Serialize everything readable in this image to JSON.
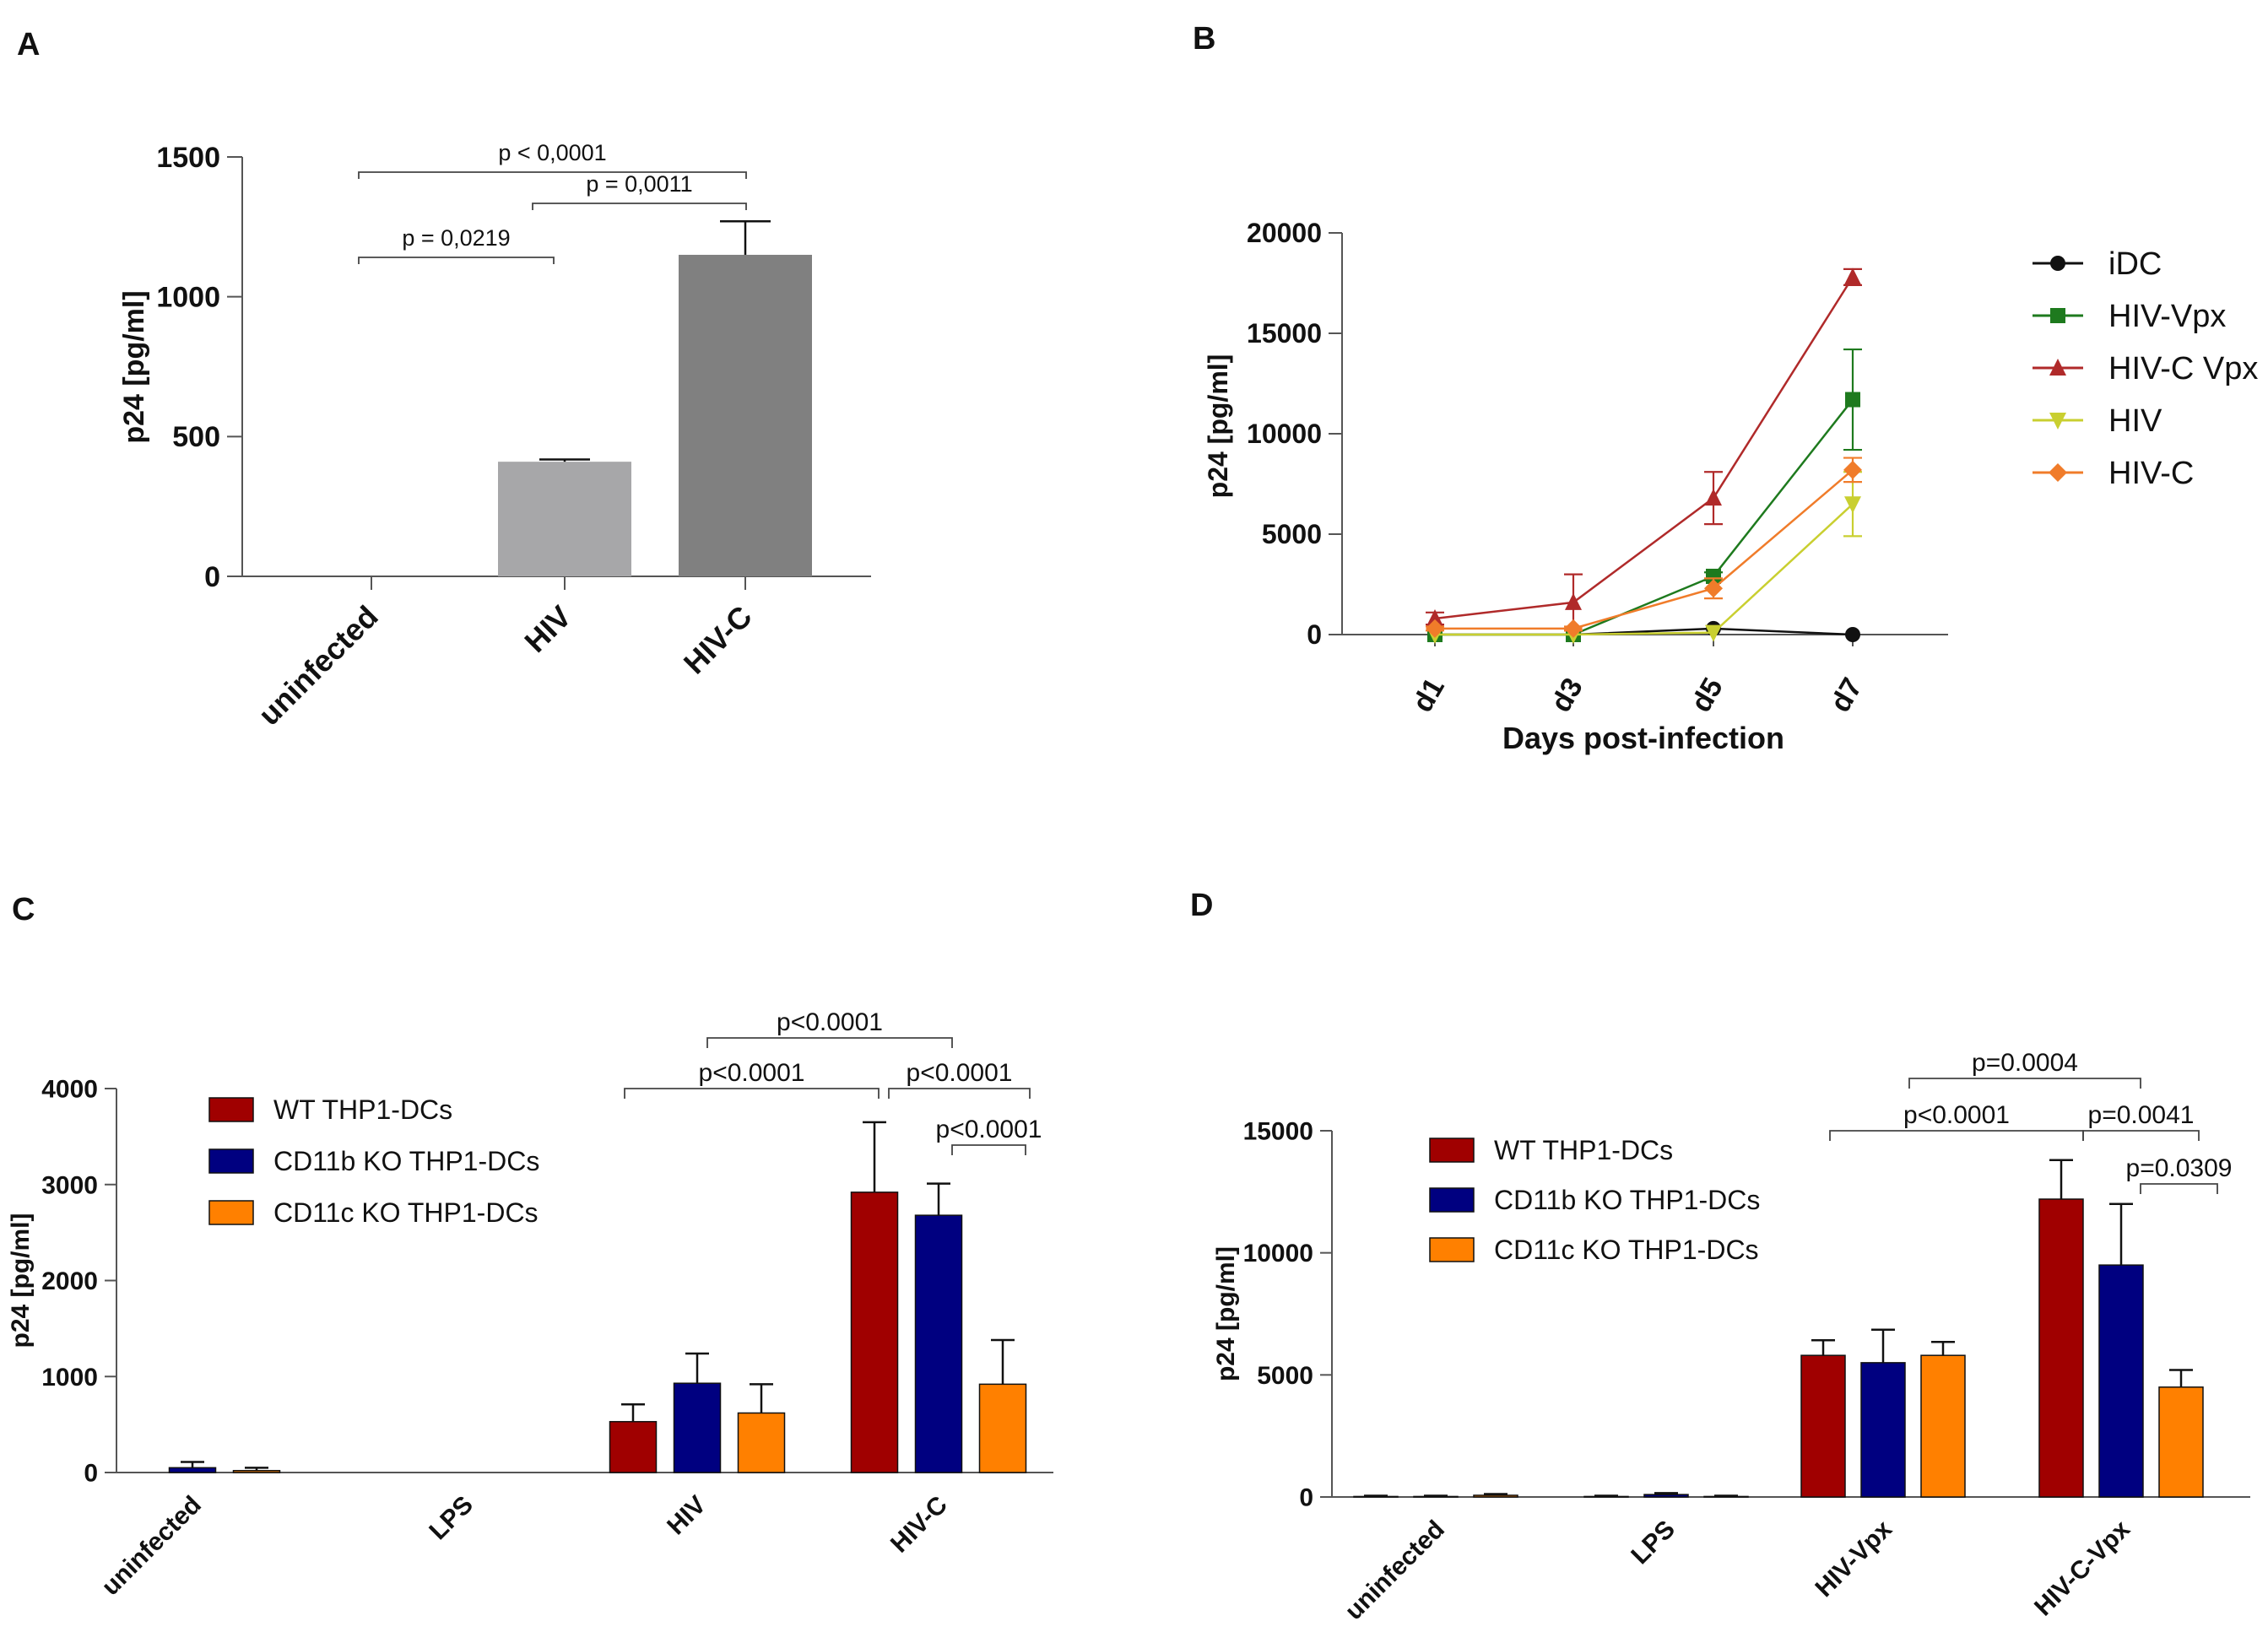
{
  "chart_data": [
    {
      "panel": "A",
      "type": "bar",
      "ylabel": "p24 [pg/ml]",
      "ylim": [
        0,
        1500
      ],
      "yticks": [
        "0",
        "500",
        "1000",
        "1500"
      ],
      "categories": [
        "uninfected",
        "HIV",
        "HIV-C"
      ],
      "series": [
        {
          "name": "p24",
          "values": [
            0,
            410,
            1150
          ],
          "errors": [
            0,
            8,
            120
          ],
          "colors": [
            "#b0b0b0",
            "#a7a7a9",
            "#808080"
          ]
        }
      ],
      "annotations": [
        {
          "text": "p < 0,0001",
          "from": 0,
          "to": 2,
          "level": 1460
        },
        {
          "text": "p = 0,0011",
          "from": 1,
          "to": 2,
          "level": 1330
        },
        {
          "text": "p = 0,0219",
          "from": 0,
          "to": 1,
          "level": 1140
        }
      ]
    },
    {
      "panel": "B",
      "type": "line",
      "xlabel": "Days post-infection",
      "ylabel": "p24 [pg/ml]",
      "ylim": [
        0,
        20000
      ],
      "yticks": [
        "0",
        "5000",
        "10000",
        "15000",
        "20000"
      ],
      "categories": [
        "d1",
        "d3",
        "d5",
        "d7"
      ],
      "series": [
        {
          "name": "iDC",
          "color": "#111111",
          "marker": "circle",
          "values": [
            0,
            0,
            300,
            0
          ],
          "errors": [
            0,
            0,
            0,
            0
          ]
        },
        {
          "name": "HIV-Vpx",
          "color": "#1e7a1e",
          "marker": "square",
          "values": [
            0,
            0,
            2900,
            11700
          ],
          "errors": [
            0,
            0,
            200,
            2500
          ]
        },
        {
          "name": "HIV-C Vpx",
          "color": "#b02a2a",
          "marker": "triangle-up",
          "values": [
            800,
            1600,
            6800,
            17800
          ],
          "errors": [
            300,
            1400,
            1300,
            400
          ]
        },
        {
          "name": "HIV",
          "color": "#c9cf30",
          "marker": "triangle-down",
          "values": [
            0,
            0,
            100,
            6500
          ],
          "errors": [
            0,
            0,
            0,
            1600
          ]
        },
        {
          "name": "HIV-C",
          "color": "#f07c2a",
          "marker": "diamond",
          "values": [
            300,
            300,
            2300,
            8200
          ],
          "errors": [
            100,
            100,
            500,
            600
          ]
        }
      ]
    },
    {
      "panel": "C",
      "type": "bar",
      "ylabel": "p24 [pg/ml]",
      "ylim": [
        0,
        4000
      ],
      "yticks": [
        "0",
        "1000",
        "2000",
        "3000",
        "4000"
      ],
      "categories": [
        "uninfected",
        "LPS",
        "HIV",
        "HIV-C"
      ],
      "series": [
        {
          "name": "WT THP1-DCs",
          "color": "#a00000",
          "values": [
            0,
            0,
            530,
            2920
          ],
          "errors": [
            0,
            0,
            180,
            730
          ]
        },
        {
          "name": "CD11b KO THP1-DCs",
          "color": "#000080",
          "values": [
            50,
            0,
            930,
            2680
          ],
          "errors": [
            60,
            0,
            310,
            330
          ]
        },
        {
          "name": "CD11c KO THP1-DCs",
          "color": "#ff8000",
          "values": [
            20,
            0,
            620,
            920
          ],
          "errors": [
            30,
            0,
            300,
            460
          ]
        }
      ],
      "annotations": [
        {
          "text": "p<0.0001",
          "level": 4480
        },
        {
          "text": "p<0.0001",
          "level": 4000
        },
        {
          "text": "p<0.0001",
          "level": 4000
        },
        {
          "text": "p<0.0001",
          "level": 3390
        }
      ]
    },
    {
      "panel": "D",
      "type": "bar",
      "ylabel": "p24 [pg/ml]",
      "ylim": [
        0,
        15000
      ],
      "yticks": [
        "0",
        "5000",
        "10000",
        "15000"
      ],
      "categories": [
        "uninfected",
        "LPS",
        "HIV-Vpx",
        "HIV-C-Vpx"
      ],
      "series": [
        {
          "name": "WT THP1-DCs",
          "color": "#a00000",
          "values": [
            20,
            20,
            5800,
            12200
          ],
          "errors": [
            30,
            30,
            620,
            1600
          ]
        },
        {
          "name": "CD11b KO THP1-DCs",
          "color": "#000080",
          "values": [
            20,
            100,
            5500,
            9500
          ],
          "errors": [
            30,
            60,
            1350,
            2500
          ]
        },
        {
          "name": "CD11c KO THP1-DCs",
          "color": "#ff8000",
          "values": [
            70,
            20,
            5800,
            4500
          ],
          "errors": [
            50,
            30,
            550,
            700
          ]
        }
      ],
      "annotations": [
        {
          "text": "p=0.0004",
          "level": 17000
        },
        {
          "text": "p<0.0001",
          "level": 15300
        },
        {
          "text": "p=0.0041",
          "level": 15300
        },
        {
          "text": "p=0.0309",
          "level": 13100
        }
      ]
    }
  ],
  "panel_letters": [
    "A",
    "B",
    "C",
    "D"
  ]
}
